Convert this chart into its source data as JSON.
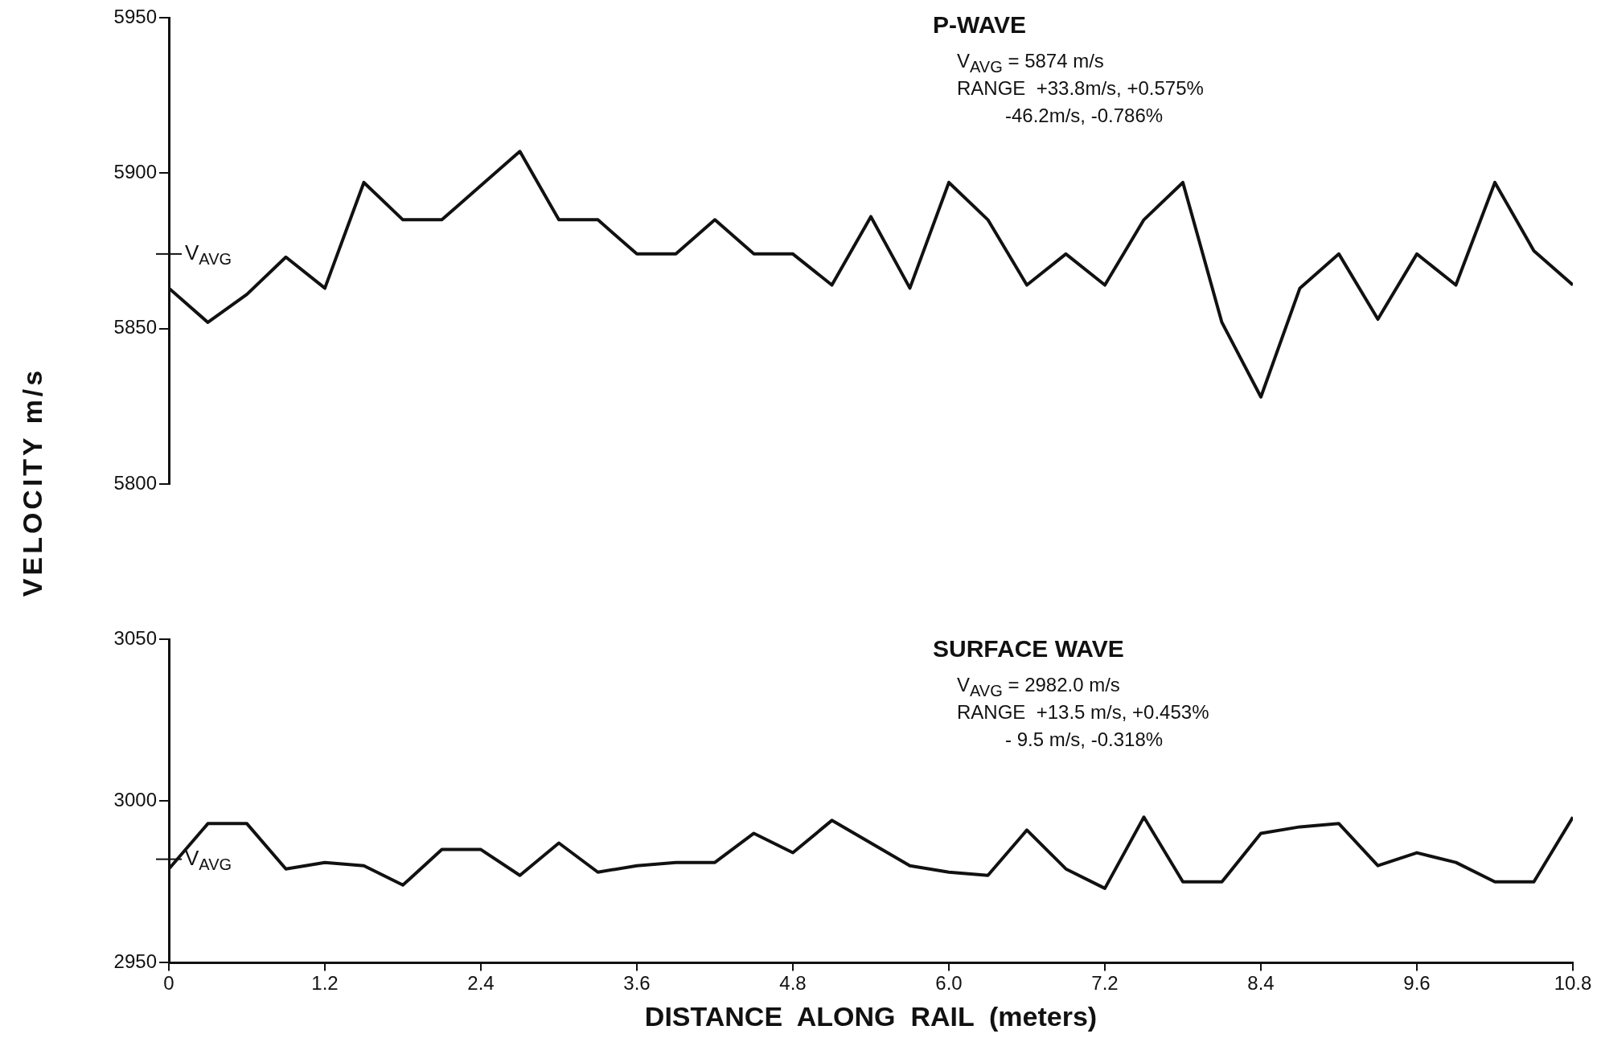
{
  "chart_data": [
    {
      "type": "line",
      "title": "P-WAVE",
      "ylabel": "VELOCITY  m/s",
      "annotations": [
        "V$_{AVG}$ = 5874 m/s",
        "RANGE  +33.8m/s, +0.575%",
        "-46.2m/s, -0.786%"
      ],
      "x": [
        0,
        0.3,
        0.6,
        0.9,
        1.2,
        1.5,
        1.8,
        2.1,
        2.4,
        2.7,
        3.0,
        3.3,
        3.6,
        3.9,
        4.2,
        4.5,
        4.8,
        5.1,
        5.4,
        5.7,
        6.0,
        6.3,
        6.6,
        6.9,
        7.2,
        7.5,
        7.8,
        8.1,
        8.4,
        8.7,
        9.0,
        9.3,
        9.6,
        9.9,
        10.2,
        10.5,
        10.8
      ],
      "values": [
        5863,
        5852,
        5861,
        5873,
        5863,
        5897,
        5885,
        5885,
        5896,
        5907,
        5885,
        5885,
        5874,
        5874,
        5885,
        5874,
        5874,
        5864,
        5886,
        5863,
        5897,
        5885,
        5864,
        5874,
        5864,
        5885,
        5897,
        5852,
        5828,
        5863,
        5874,
        5853,
        5874,
        5864,
        5897,
        5875,
        5864
      ],
      "color": "#111111",
      "xlim": [
        0,
        10.8
      ],
      "ylim": [
        5800,
        5950
      ],
      "yticks": [
        5800,
        5850,
        5900,
        5950
      ],
      "ref_lines": [
        {
          "axis": "y",
          "value": 5874,
          "label": "V$_{AVG}$"
        }
      ],
      "tick_labels": "y",
      "grid": false,
      "legend": false,
      "marker": "none",
      "line_style": "solid"
    },
    {
      "type": "line",
      "title": "SURFACE WAVE",
      "xlabel": "DISTANCE  ALONG  RAIL  (meters)",
      "annotations": [
        "V$_{AVG}$ = 2982.0 m/s",
        "RANGE  +13.5 m/s, +0.453%",
        "- 9.5 m/s, -0.318%"
      ],
      "x": [
        0,
        0.3,
        0.6,
        0.9,
        1.2,
        1.5,
        1.8,
        2.1,
        2.4,
        2.7,
        3.0,
        3.3,
        3.6,
        3.9,
        4.2,
        4.5,
        4.8,
        5.1,
        5.4,
        5.7,
        6.0,
        6.3,
        6.6,
        6.9,
        7.2,
        7.5,
        7.8,
        8.1,
        8.4,
        8.7,
        9.0,
        9.3,
        9.6,
        9.9,
        10.2,
        10.5,
        10.8
      ],
      "values": [
        2979,
        2993,
        2993,
        2979,
        2981,
        2980,
        2974,
        2985,
        2985,
        2977,
        2987,
        2978,
        2980,
        2981,
        2981,
        2990,
        2984,
        2994,
        2987,
        2980,
        2978,
        2977,
        2991,
        2979,
        2973,
        2995,
        2975,
        2975,
        2990,
        2992,
        2993,
        2980,
        2984,
        2981,
        2975,
        2975,
        2995
      ],
      "color": "#111111",
      "xlim": [
        0,
        10.8
      ],
      "ylim": [
        2950,
        3050
      ],
      "yticks": [
        2950,
        3000,
        3050
      ],
      "xticks": [
        0,
        1.2,
        2.4,
        3.6,
        4.8,
        {
          "value": 6,
          "label": "6.0"
        },
        7.2,
        8.4,
        9.6,
        10.8
      ],
      "ref_lines": [
        {
          "axis": "y",
          "value": 2982,
          "label": "V$_{AVG}$"
        }
      ],
      "grid": false,
      "legend": false,
      "marker": "none",
      "line_style": "solid"
    }
  ]
}
